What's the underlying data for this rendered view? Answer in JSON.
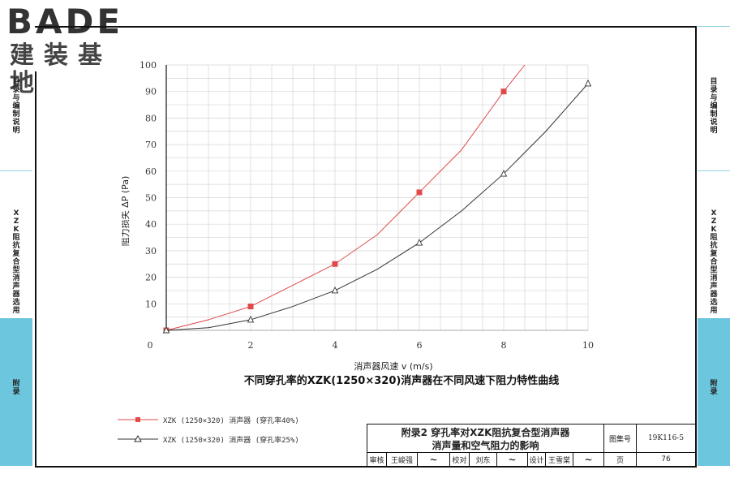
{
  "logo": {
    "mark": "BADE",
    "subtitle": "建装基地"
  },
  "side_tabs": [
    {
      "text": "目录与编制说明"
    },
    {
      "text": "XZK阻抗复合型消声器选用"
    },
    {
      "text": "附录"
    }
  ],
  "chart_data": {
    "type": "line",
    "title": "不同穿孔率的XZK(1250×320)消声器在不同风速下阻力特性曲线",
    "xlabel": "消声器风速 v (m/s)",
    "ylabel": "阻力损失 ΔP (Pa)",
    "xlim": [
      0,
      10
    ],
    "ylim": [
      0,
      100
    ],
    "xticks": [
      0,
      2,
      4,
      6,
      8,
      10
    ],
    "yticks": [
      10,
      20,
      30,
      40,
      50,
      60,
      70,
      80,
      90,
      100
    ],
    "grid": true,
    "series": [
      {
        "name": "XZK (1250×320) 消声器 (穿孔率40%)",
        "color": "#e04a4a",
        "marker": "square",
        "x": [
          0,
          1,
          2,
          3,
          4,
          5,
          6,
          7,
          8,
          8.5
        ],
        "y": [
          0,
          4,
          9,
          17,
          25,
          36,
          52,
          68,
          90,
          100
        ],
        "marked_x": [
          0,
          2,
          4,
          6,
          8
        ]
      },
      {
        "name": "XZK (1250×320) 消声器 (穿孔率25%)",
        "color": "#333333",
        "marker": "triangle",
        "x": [
          0,
          1,
          2,
          3,
          4,
          5,
          6,
          7,
          8,
          9,
          10
        ],
        "y": [
          0,
          1,
          4,
          9,
          15,
          23,
          33,
          45,
          59,
          75,
          93
        ],
        "marked_x": [
          0,
          2,
          4,
          6,
          8,
          10
        ]
      }
    ]
  },
  "title_block": {
    "title_line1": "附录2  穿孔率对XZK阻抗复合型消声器",
    "title_line2": "消声量和空气阻力的影响",
    "atlas_label": "图集号",
    "atlas_no": "19K116-5",
    "review_label": "审核",
    "reviewer": "王峻强",
    "check_label": "校对",
    "checker": "刘东",
    "design_label": "设计",
    "designer": "王雪棠",
    "page_label": "页",
    "page_no": "76"
  }
}
